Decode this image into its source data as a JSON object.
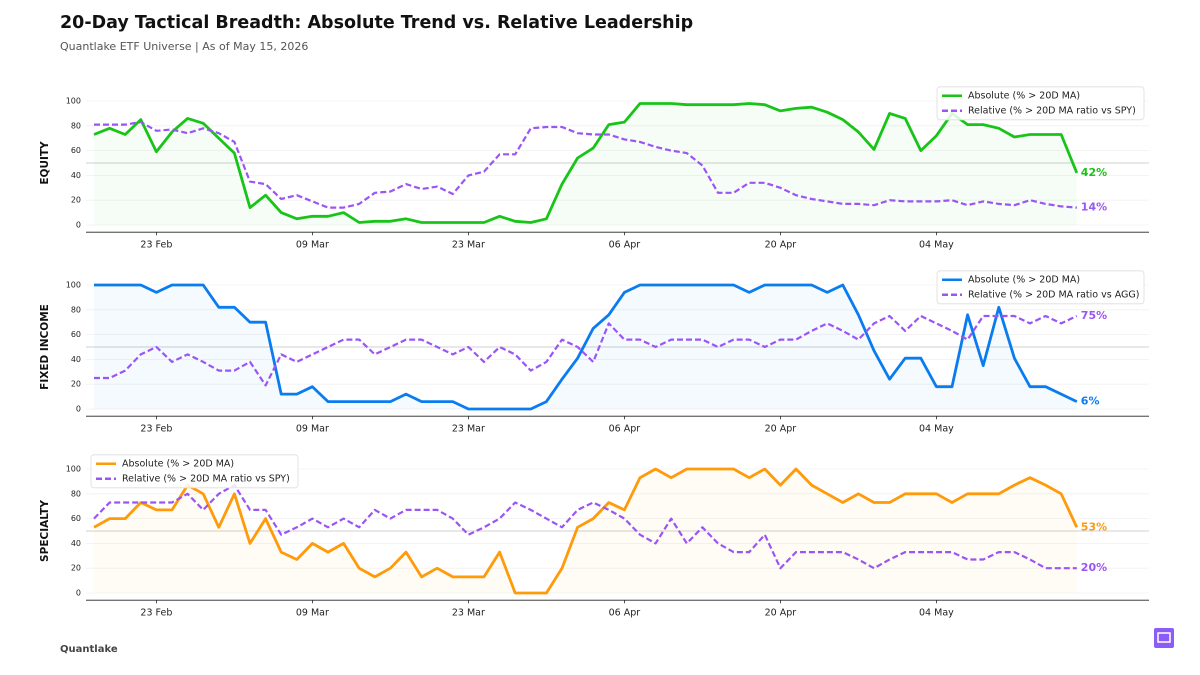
{
  "header": {
    "title": "20-Day Tactical Breadth: Absolute Trend vs. Relative Leadership",
    "subtitle": "Quantlake ETF Universe  |  As of May 15, 2026"
  },
  "footer": "Quantlake",
  "chart_data": [
    {
      "type": "line",
      "ylabel": "EQUITY",
      "ylim": [
        -5,
        105
      ],
      "yticks": [
        0,
        20,
        40,
        60,
        80,
        100
      ],
      "grid": true,
      "hline": 50,
      "legend": "upper right",
      "categories": [
        null,
        null,
        null,
        null,
        "23 Feb",
        null,
        null,
        null,
        null,
        null,
        null,
        null,
        null,
        null,
        "09 Mar",
        null,
        null,
        null,
        null,
        null,
        null,
        null,
        null,
        null,
        "23 Mar",
        null,
        null,
        null,
        null,
        null,
        null,
        null,
        null,
        null,
        "06 Apr",
        null,
        null,
        null,
        null,
        null,
        null,
        null,
        null,
        null,
        "20 Apr",
        null,
        null,
        null,
        null,
        null,
        null,
        null,
        null,
        null,
        "04 May",
        null,
        null,
        null,
        null,
        null,
        null,
        null,
        null,
        null
      ],
      "series": [
        {
          "name": "Absolute (% > 20D MA)",
          "color": "#18c418",
          "linestyle": "solid",
          "fill": true,
          "values": [
            73,
            78,
            73,
            85,
            59,
            75,
            86,
            82,
            70,
            58,
            14,
            24,
            10,
            5,
            7,
            7,
            10,
            2,
            3,
            3,
            5,
            2,
            2,
            2,
            2,
            2,
            7,
            3,
            2,
            5,
            33,
            54,
            62,
            81,
            83,
            98,
            98,
            98,
            97,
            97,
            97,
            97,
            98,
            97,
            92,
            94,
            95,
            91,
            85,
            75,
            61,
            90,
            86,
            60,
            72,
            90,
            81,
            81,
            78,
            71,
            73,
            73,
            73,
            42
          ],
          "value_labels": [
            null,
            null,
            null,
            null,
            null,
            null,
            null,
            null,
            null,
            null,
            null,
            null,
            null,
            null,
            null,
            null,
            null,
            null,
            null,
            null,
            null,
            null,
            null,
            null,
            null,
            null,
            null,
            null,
            null,
            null,
            null,
            null,
            null,
            null,
            null,
            null,
            null,
            null,
            null,
            null,
            null,
            null,
            null,
            null,
            null,
            null,
            null,
            null,
            null,
            null,
            null,
            null,
            null,
            null,
            null,
            null,
            null,
            null,
            null,
            null,
            null,
            null,
            null,
            "42%"
          ]
        },
        {
          "name": "Relative (% > 20D MA ratio vs SPY)",
          "color": "#9b55f5",
          "linestyle": "dashed",
          "values": [
            81,
            81,
            81,
            83,
            76,
            77,
            74,
            78,
            74,
            67,
            35,
            33,
            21,
            24,
            19,
            14,
            14,
            17,
            26,
            27,
            33,
            29,
            31,
            25,
            40,
            43,
            57,
            57,
            78,
            79,
            79,
            74,
            73,
            73,
            69,
            67,
            63,
            60,
            58,
            48,
            26,
            26,
            34,
            34,
            30,
            24,
            21,
            19,
            17,
            17,
            16,
            20,
            19,
            19,
            19,
            20,
            16,
            19,
            17,
            16,
            20,
            17,
            15,
            14
          ],
          "value_labels": [
            null,
            null,
            null,
            null,
            null,
            null,
            null,
            null,
            null,
            null,
            null,
            null,
            null,
            null,
            null,
            null,
            null,
            null,
            null,
            null,
            null,
            null,
            null,
            null,
            null,
            null,
            null,
            null,
            null,
            null,
            null,
            null,
            null,
            null,
            null,
            null,
            null,
            null,
            null,
            null,
            null,
            null,
            null,
            null,
            null,
            null,
            null,
            null,
            null,
            null,
            null,
            null,
            null,
            null,
            null,
            null,
            null,
            null,
            null,
            null,
            null,
            null,
            null,
            "14%"
          ]
        }
      ]
    },
    {
      "type": "line",
      "ylabel": "FIXED INCOME",
      "ylim": [
        -5,
        105
      ],
      "yticks": [
        0,
        20,
        40,
        60,
        80,
        100
      ],
      "grid": true,
      "hline": 50,
      "legend": "upper right",
      "categories": [
        null,
        null,
        null,
        null,
        "23 Feb",
        null,
        null,
        null,
        null,
        null,
        null,
        null,
        null,
        null,
        "09 Mar",
        null,
        null,
        null,
        null,
        null,
        null,
        null,
        null,
        null,
        "23 Mar",
        null,
        null,
        null,
        null,
        null,
        null,
        null,
        null,
        null,
        "06 Apr",
        null,
        null,
        null,
        null,
        null,
        null,
        null,
        null,
        null,
        "20 Apr",
        null,
        null,
        null,
        null,
        null,
        null,
        null,
        null,
        null,
        "04 May",
        null,
        null,
        null,
        null,
        null,
        null,
        null,
        null,
        null
      ],
      "series": [
        {
          "name": "Absolute (% > 20D MA)",
          "color": "#0a7cf0",
          "linestyle": "solid",
          "fill": true,
          "values": [
            100,
            100,
            100,
            100,
            94,
            100,
            100,
            100,
            82,
            82,
            70,
            70,
            12,
            12,
            18,
            6,
            6,
            6,
            6,
            6,
            12,
            6,
            6,
            6,
            0,
            0,
            0,
            0,
            0,
            6,
            24,
            41,
            65,
            76,
            94,
            100,
            100,
            100,
            100,
            100,
            100,
            100,
            94,
            100,
            100,
            100,
            100,
            94,
            100,
            76,
            47,
            24,
            41,
            41,
            18,
            18,
            76,
            35,
            82,
            41,
            18,
            18,
            12,
            6
          ],
          "value_labels": [
            null,
            null,
            null,
            null,
            null,
            null,
            null,
            null,
            null,
            null,
            null,
            null,
            null,
            null,
            null,
            null,
            null,
            null,
            null,
            null,
            null,
            null,
            null,
            null,
            null,
            null,
            null,
            null,
            null,
            null,
            null,
            null,
            null,
            null,
            null,
            null,
            null,
            null,
            null,
            null,
            null,
            null,
            null,
            null,
            null,
            null,
            null,
            null,
            null,
            null,
            null,
            null,
            null,
            null,
            null,
            null,
            null,
            null,
            null,
            null,
            null,
            null,
            null,
            "6%"
          ]
        },
        {
          "name": "Relative (% > 20D MA ratio vs AGG)",
          "color": "#9b55f5",
          "linestyle": "dashed",
          "values": [
            25,
            25,
            31,
            44,
            50,
            38,
            44,
            38,
            31,
            31,
            38,
            19,
            44,
            38,
            44,
            50,
            56,
            56,
            44,
            50,
            56,
            56,
            50,
            44,
            50,
            38,
            50,
            44,
            31,
            38,
            56,
            50,
            38,
            69,
            56,
            56,
            50,
            56,
            56,
            56,
            50,
            56,
            56,
            50,
            56,
            56,
            63,
            69,
            63,
            56,
            69,
            75,
            63,
            75,
            69,
            63,
            56,
            75,
            75,
            75,
            69,
            75,
            69,
            75
          ],
          "value_labels": [
            null,
            null,
            null,
            null,
            null,
            null,
            null,
            null,
            null,
            null,
            null,
            null,
            null,
            null,
            null,
            null,
            null,
            null,
            null,
            null,
            null,
            null,
            null,
            null,
            null,
            null,
            null,
            null,
            null,
            null,
            null,
            null,
            null,
            null,
            null,
            null,
            null,
            null,
            null,
            null,
            null,
            null,
            null,
            null,
            null,
            null,
            null,
            null,
            null,
            null,
            null,
            null,
            null,
            null,
            null,
            null,
            null,
            null,
            null,
            null,
            null,
            null,
            null,
            "75%"
          ]
        }
      ]
    },
    {
      "type": "line",
      "ylabel": "SPECIALTY",
      "ylim": [
        -5,
        105
      ],
      "yticks": [
        0,
        20,
        40,
        60,
        80,
        100
      ],
      "grid": true,
      "hline": 50,
      "legend": "upper left",
      "categories": [
        null,
        null,
        null,
        null,
        "23 Feb",
        null,
        null,
        null,
        null,
        null,
        null,
        null,
        null,
        null,
        "09 Mar",
        null,
        null,
        null,
        null,
        null,
        null,
        null,
        null,
        null,
        "23 Mar",
        null,
        null,
        null,
        null,
        null,
        null,
        null,
        null,
        null,
        "06 Apr",
        null,
        null,
        null,
        null,
        null,
        null,
        null,
        null,
        null,
        "20 Apr",
        null,
        null,
        null,
        null,
        null,
        null,
        null,
        null,
        null,
        "04 May",
        null,
        null,
        null,
        null,
        null,
        null,
        null,
        null,
        null
      ],
      "series": [
        {
          "name": "Absolute (% > 20D MA)",
          "color": "#ff9a0a",
          "linestyle": "solid",
          "fill": true,
          "values": [
            53,
            60,
            60,
            73,
            67,
            67,
            87,
            80,
            53,
            80,
            40,
            60,
            33,
            27,
            40,
            33,
            40,
            20,
            13,
            20,
            33,
            13,
            20,
            13,
            13,
            13,
            33,
            0,
            0,
            0,
            20,
            53,
            60,
            73,
            67,
            93,
            100,
            93,
            100,
            100,
            100,
            100,
            93,
            100,
            87,
            100,
            87,
            80,
            73,
            80,
            73,
            73,
            80,
            80,
            80,
            73,
            80,
            80,
            80,
            87,
            93,
            87,
            80,
            53
          ],
          "value_labels": [
            null,
            null,
            null,
            null,
            null,
            null,
            null,
            null,
            null,
            null,
            null,
            null,
            null,
            null,
            null,
            null,
            null,
            null,
            null,
            null,
            null,
            null,
            null,
            null,
            null,
            null,
            null,
            null,
            null,
            null,
            null,
            null,
            null,
            null,
            null,
            null,
            null,
            null,
            null,
            null,
            null,
            null,
            null,
            null,
            null,
            null,
            null,
            null,
            null,
            null,
            null,
            null,
            null,
            null,
            null,
            null,
            null,
            null,
            null,
            null,
            null,
            null,
            null,
            "53%"
          ]
        },
        {
          "name": "Relative (% > 20D MA ratio vs SPY)",
          "color": "#9b55f5",
          "linestyle": "dashed",
          "values": [
            60,
            73,
            73,
            73,
            73,
            73,
            80,
            67,
            80,
            87,
            67,
            67,
            47,
            53,
            60,
            53,
            60,
            53,
            67,
            60,
            67,
            67,
            67,
            60,
            47,
            53,
            60,
            73,
            67,
            60,
            53,
            67,
            73,
            67,
            60,
            47,
            40,
            60,
            40,
            53,
            40,
            33,
            33,
            47,
            20,
            33,
            33,
            33,
            33,
            27,
            20,
            27,
            33,
            33,
            33,
            33,
            27,
            27,
            33,
            33,
            27,
            20,
            20,
            20
          ],
          "value_labels": [
            null,
            null,
            null,
            null,
            null,
            null,
            null,
            null,
            null,
            null,
            null,
            null,
            null,
            null,
            null,
            null,
            null,
            null,
            null,
            null,
            null,
            null,
            null,
            null,
            null,
            null,
            null,
            null,
            null,
            null,
            null,
            null,
            null,
            null,
            null,
            null,
            null,
            null,
            null,
            null,
            null,
            null,
            null,
            null,
            null,
            null,
            null,
            null,
            null,
            null,
            null,
            null,
            null,
            null,
            null,
            null,
            null,
            null,
            null,
            null,
            null,
            null,
            null,
            "20%"
          ]
        }
      ]
    }
  ]
}
